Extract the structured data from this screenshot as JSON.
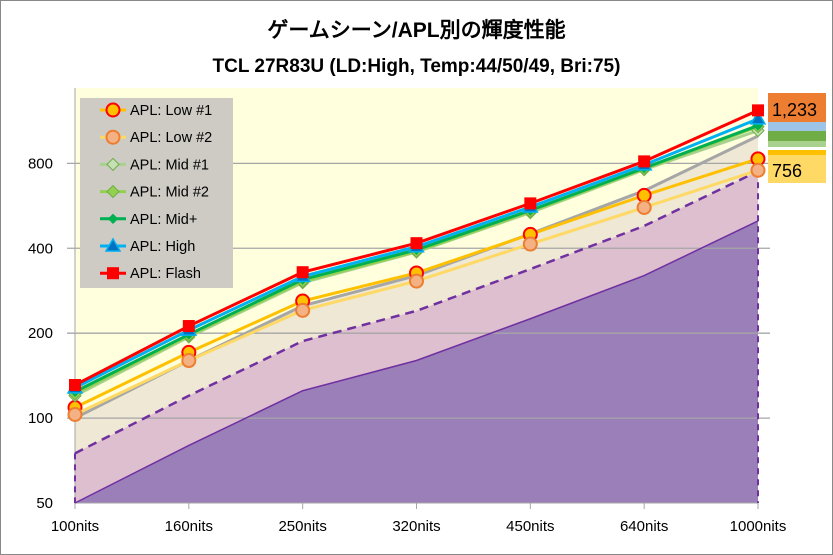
{
  "chart_data": {
    "type": "line",
    "title": "ゲームシーン/APL別の輝度性能",
    "subtitle": "TCL 27R83U (LD:High, Temp:44/50/49, Bri:75)",
    "categories": [
      "100nits",
      "160nits",
      "250nits",
      "320nits",
      "450nits",
      "640nits",
      "1000nits"
    ],
    "y_scale": "log2",
    "ylim": [
      50,
      1480
    ],
    "y_ticks": [
      50,
      100,
      200,
      400,
      800
    ],
    "grid": true,
    "legend_position": "top-left",
    "reference_areas": [
      {
        "ratio": 0.5,
        "color": "#9B7FB9",
        "style": "solid"
      },
      {
        "ratio": 0.75,
        "color": "#DDBFCF",
        "style": "dashed"
      },
      {
        "ratio": 1.0,
        "color": "#EEE8D4",
        "style": "gray-line"
      }
    ],
    "series": [
      {
        "name": "APL: Low #1",
        "color": "#FFC000",
        "marker": "circle",
        "marker_fill": "#FFC000",
        "marker_edge": "#FF0000",
        "values": [
          109,
          171,
          260,
          327,
          448,
          616,
          830
        ]
      },
      {
        "name": "APL: Low #2",
        "color": "#FFD966",
        "marker": "circle",
        "marker_fill": "#F4B183",
        "marker_edge": "#ED7D31",
        "values": [
          103,
          160,
          241,
          306,
          414,
          558,
          756
        ]
      },
      {
        "name": "APL: Mid #1",
        "color": "#A9D18E",
        "marker": "diamond",
        "marker_fill": "#C5E0B4",
        "marker_edge": "#70AD47",
        "values": [
          120,
          194,
          302,
          388,
          535,
          760,
          1045
        ]
      },
      {
        "name": "APL: Mid #2",
        "color": "#92D050",
        "marker": "diamond",
        "marker_fill": "#92D050",
        "marker_edge": "#70AD47",
        "values": [
          122,
          196,
          305,
          390,
          540,
          765,
          1080
        ]
      },
      {
        "name": "APL: Mid+",
        "color": "#00B050",
        "marker": "diamond-small",
        "marker_fill": "#00B050",
        "marker_edge": "#00B050",
        "values": [
          124,
          198,
          310,
          395,
          545,
          770,
          1090
        ]
      },
      {
        "name": "APL: High",
        "color": "#00B0F0",
        "marker": "triangle",
        "marker_fill": "#0070C0",
        "marker_edge": "#00B0F0",
        "values": [
          128,
          205,
          318,
          405,
          560,
          790,
          1150
        ]
      },
      {
        "name": "APL: Flash",
        "color": "#FF0000",
        "marker": "square",
        "marker_fill": "#FF0000",
        "marker_edge": "#FF0000",
        "values": [
          131,
          212,
          329,
          417,
          577,
          813,
          1233
        ]
      }
    ],
    "end_labels": [
      {
        "text": "1,233",
        "color": "#ED7D31"
      },
      {
        "text": "756",
        "color": "#FFD966"
      }
    ]
  }
}
